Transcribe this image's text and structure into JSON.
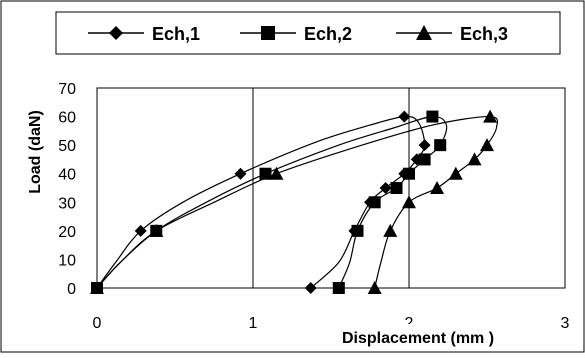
{
  "chart_data": {
    "type": "line",
    "title": "",
    "xlabel": "Displacement  (mm )",
    "ylabel": "Load (daN)",
    "xlim": [
      0,
      3
    ],
    "ylim": [
      0,
      70
    ],
    "xticks": [
      "0",
      "1",
      "2",
      "3"
    ],
    "yticks": [
      "0",
      "10",
      "20",
      "30",
      "40",
      "50",
      "60",
      "70"
    ],
    "grid": {
      "vertical": true,
      "horizontal": false
    },
    "legend_position": "top",
    "series": [
      {
        "name": "Ech,1",
        "marker": "diamond",
        "color": "#000000",
        "points": [
          [
            0,
            0
          ],
          [
            0.28,
            20
          ],
          [
            0.92,
            40
          ],
          [
            1.97,
            60
          ],
          [
            2.1,
            50
          ],
          [
            2.05,
            45
          ],
          [
            1.97,
            40
          ],
          [
            1.85,
            35
          ],
          [
            1.75,
            30
          ],
          [
            1.65,
            20
          ],
          [
            1.37,
            0
          ]
        ],
        "curve": [
          [
            0,
            0
          ],
          [
            0.12,
            9
          ],
          [
            0.28,
            20
          ],
          [
            0.55,
            30
          ],
          [
            0.92,
            40
          ],
          [
            1.4,
            51
          ],
          [
            1.75,
            57
          ],
          [
            1.97,
            60
          ],
          [
            2.06,
            58
          ],
          [
            2.1,
            50
          ],
          [
            2.05,
            45
          ],
          [
            1.97,
            40
          ],
          [
            1.85,
            35
          ],
          [
            1.75,
            30
          ],
          [
            1.65,
            20
          ],
          [
            1.55,
            9
          ],
          [
            1.37,
            0
          ]
        ]
      },
      {
        "name": "Ech,2",
        "marker": "square",
        "color": "#000000",
        "points": [
          [
            0,
            0
          ],
          [
            0.38,
            20
          ],
          [
            1.08,
            40
          ],
          [
            2.15,
            60
          ],
          [
            2.2,
            50
          ],
          [
            2.1,
            45
          ],
          [
            2.0,
            40
          ],
          [
            1.92,
            35
          ],
          [
            1.78,
            30
          ],
          [
            1.67,
            20
          ],
          [
            1.55,
            0
          ]
        ],
        "curve": [
          [
            0,
            0
          ],
          [
            0.15,
            9
          ],
          [
            0.38,
            20
          ],
          [
            0.7,
            30
          ],
          [
            1.08,
            40
          ],
          [
            1.55,
            50
          ],
          [
            1.9,
            56
          ],
          [
            2.15,
            60
          ],
          [
            2.24,
            57
          ],
          [
            2.2,
            50
          ],
          [
            2.1,
            45
          ],
          [
            2.0,
            40
          ],
          [
            1.92,
            35
          ],
          [
            1.78,
            30
          ],
          [
            1.67,
            20
          ],
          [
            1.62,
            9
          ],
          [
            1.55,
            0
          ]
        ]
      },
      {
        "name": "Ech,3",
        "marker": "triangle",
        "color": "#000000",
        "points": [
          [
            0,
            0
          ],
          [
            0.38,
            20
          ],
          [
            1.15,
            40
          ],
          [
            2.52,
            60
          ],
          [
            2.5,
            50
          ],
          [
            2.42,
            45
          ],
          [
            2.3,
            40
          ],
          [
            2.18,
            35
          ],
          [
            2.0,
            30
          ],
          [
            1.88,
            20
          ],
          [
            1.78,
            0
          ]
        ],
        "curve": [
          [
            0,
            0
          ],
          [
            0.15,
            9
          ],
          [
            0.38,
            20
          ],
          [
            0.75,
            30
          ],
          [
            1.15,
            40
          ],
          [
            1.7,
            50
          ],
          [
            2.15,
            57
          ],
          [
            2.52,
            60
          ],
          [
            2.56,
            56
          ],
          [
            2.5,
            50
          ],
          [
            2.42,
            45
          ],
          [
            2.3,
            40
          ],
          [
            2.18,
            35
          ],
          [
            2.0,
            30
          ],
          [
            1.88,
            20
          ],
          [
            1.82,
            9
          ],
          [
            1.78,
            0
          ]
        ]
      }
    ]
  }
}
